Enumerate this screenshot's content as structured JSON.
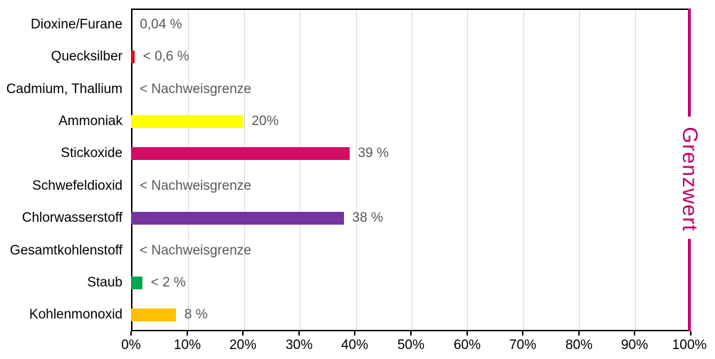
{
  "chart_data": {
    "type": "bar",
    "orientation": "horizontal",
    "title": "",
    "xlabel": "",
    "ylabel": "",
    "xlim": [
      0,
      100
    ],
    "grid": true,
    "x_ticks": [
      "0%",
      "10%",
      "20%",
      "30%",
      "40%",
      "50%",
      "60%",
      "70%",
      "80%",
      "90%",
      "100%"
    ],
    "limit_line": {
      "label": "Grenzwert",
      "value": 100,
      "color": "#C4006A"
    },
    "rows": [
      {
        "label": "Dioxine/Furane",
        "value_label": "0,04 %",
        "pct": 0.04,
        "color": null
      },
      {
        "label": "Quecksilber",
        "value_label": "< 0,6 %",
        "pct": 0.6,
        "color": "#E30613"
      },
      {
        "label": "Cadmium, Thallium",
        "value_label": "< Nachweisgrenze",
        "pct": 0,
        "color": null
      },
      {
        "label": "Ammoniak",
        "value_label": "20%",
        "pct": 20,
        "color": "#FFFF00"
      },
      {
        "label": "Stickoxide",
        "value_label": "39 %",
        "pct": 39,
        "color": "#D40C66"
      },
      {
        "label": "Schwefeldioxid",
        "value_label": "< Nachweisgrenze",
        "pct": 0,
        "color": null
      },
      {
        "label": "Chlorwasserstoff",
        "value_label": "38 %",
        "pct": 38,
        "color": "#7535A1"
      },
      {
        "label": "Gesamtkohlenstoff",
        "value_label": "< Nachweisgrenze",
        "pct": 0,
        "color": null
      },
      {
        "label": "Staub",
        "value_label": "< 2 %",
        "pct": 2,
        "color": "#00A651"
      },
      {
        "label": "Kohlenmonoxid",
        "value_label": "8 %",
        "pct": 8,
        "color": "#FFC000"
      }
    ],
    "styles": {
      "value_label_color": "#595959",
      "gridline_color": "#D9D9D9",
      "axis_color": "#000000"
    }
  }
}
